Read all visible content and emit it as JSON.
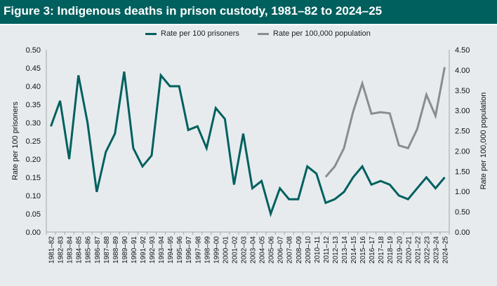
{
  "header": {
    "title": "Figure 3: Indigenous deaths in prison custody, 1981–82 to 2024–25"
  },
  "colors": {
    "header_bg": "#00605e",
    "series1": "#00605e",
    "series2": "#8c8c8c",
    "plot_bg": "#e7ebee",
    "axis": "#a6a6a6"
  },
  "chart_data": {
    "type": "line",
    "title": "Figure 3: Indigenous deaths in prison custody, 1981–82 to 2024–25",
    "legend_position": "top-center",
    "grid": false,
    "categories": [
      "1981–82",
      "1982–83",
      "1983–84",
      "1984–85",
      "1985–86",
      "1986–87",
      "1987–88",
      "1988–89",
      "1989–90",
      "1990–91",
      "1991–92",
      "1992–93",
      "1993–94",
      "1994–95",
      "1995–96",
      "1996–97",
      "1997–98",
      "1998–99",
      "1999–00",
      "2000–01",
      "2001–02",
      "2002–03",
      "2003–04",
      "2004–05",
      "2005–06",
      "2006–07",
      "2007–08",
      "2008–09",
      "2009–10",
      "2010–11",
      "2011–12",
      "2012–13",
      "2013–14",
      "2014–15",
      "2015–16",
      "2016–17",
      "2017–18",
      "2018–19",
      "2019–20",
      "2020–21",
      "2021–22",
      "2022–23",
      "2023–24",
      "2024–25"
    ],
    "y_left": {
      "label": "Rate per 100 prisoners",
      "range": [
        0,
        0.5
      ],
      "ticks": [
        "0.00",
        "0.05",
        "0.10",
        "0.15",
        "0.20",
        "0.25",
        "0.30",
        "0.35",
        "0.40",
        "0.45",
        "0.50"
      ],
      "tick_values": [
        0,
        0.05,
        0.1,
        0.15,
        0.2,
        0.25,
        0.3,
        0.35,
        0.4,
        0.45,
        0.5
      ]
    },
    "y_right": {
      "label": "Rate per 100,000 population",
      "range": [
        0,
        4.5
      ],
      "ticks": [
        "0.00",
        "0.50",
        "1.00",
        "1.50",
        "2.00",
        "2.50",
        "3.00",
        "3.50",
        "4.00",
        "4.50"
      ],
      "tick_values": [
        0,
        0.5,
        1,
        1.5,
        2,
        2.5,
        3,
        3.5,
        4,
        4.5
      ]
    },
    "series": [
      {
        "name": "Rate per 100 prisoners",
        "axis": "left",
        "values": [
          0.29,
          0.36,
          0.2,
          0.43,
          0.3,
          0.11,
          0.22,
          0.27,
          0.44,
          0.23,
          0.18,
          0.21,
          0.43,
          0.4,
          0.4,
          0.28,
          0.29,
          0.23,
          0.34,
          0.31,
          0.13,
          0.27,
          0.12,
          0.14,
          0.05,
          0.12,
          0.09,
          0.09,
          0.18,
          0.16,
          0.08,
          0.09,
          0.11,
          0.15,
          0.18,
          0.13,
          0.14,
          0.13,
          0.1,
          0.09,
          0.12,
          0.15,
          0.12,
          0.15
        ]
      },
      {
        "name": "Rate per 100,000 population",
        "axis": "right",
        "values": [
          null,
          null,
          null,
          null,
          null,
          null,
          null,
          null,
          null,
          null,
          null,
          null,
          null,
          null,
          null,
          null,
          null,
          null,
          null,
          null,
          null,
          null,
          null,
          null,
          null,
          null,
          null,
          null,
          null,
          null,
          1.36,
          1.62,
          2.07,
          2.97,
          3.67,
          2.92,
          2.96,
          2.93,
          2.14,
          2.07,
          2.54,
          3.39,
          2.87,
          4.07
        ]
      }
    ]
  }
}
